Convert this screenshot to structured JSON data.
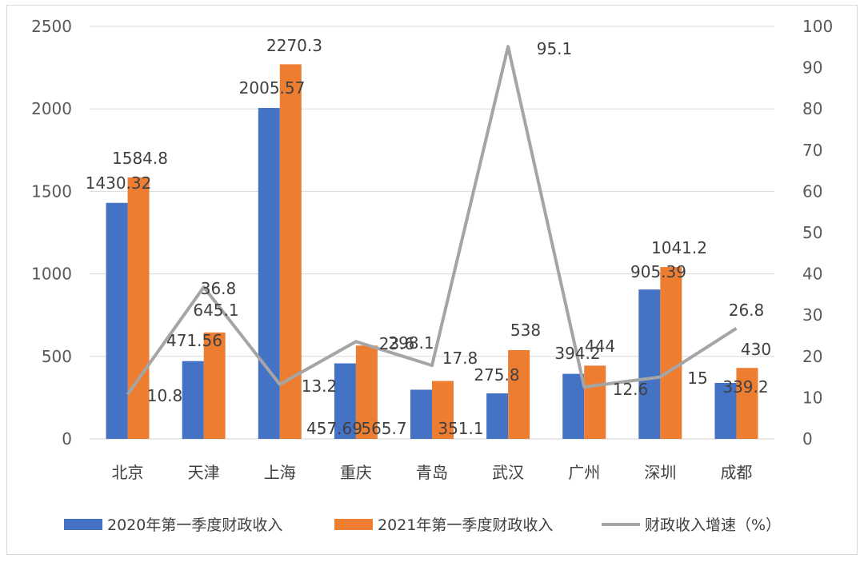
{
  "chart_data": {
    "type": "bar",
    "title": "",
    "categories": [
      "北京",
      "天津",
      "上海",
      "重庆",
      "青岛",
      "武汉",
      "广州",
      "深圳",
      "成都"
    ],
    "series": [
      {
        "name": "2020年第一季度财政收入",
        "type": "bar",
        "axis": "left",
        "color": "#4472c4",
        "values": [
          1430.32,
          471.56,
          2005.57,
          457.69,
          298.1,
          275.8,
          394.2,
          905.39,
          339.2
        ],
        "labels": [
          "1430.32",
          "471.56",
          "2005.57",
          "457.69",
          "298.1",
          "275.8",
          "394.2",
          "905.39",
          "339.2"
        ]
      },
      {
        "name": "2021年第一季度财政收入",
        "type": "bar",
        "axis": "left",
        "color": "#ed7d31",
        "values": [
          1584.8,
          645.1,
          2270.3,
          565.7,
          351.1,
          538,
          444,
          1041.2,
          430
        ],
        "labels": [
          "1584.8",
          "645.1",
          "2270.3",
          "565.7",
          "351.1",
          "538",
          "444",
          "1041.2",
          "430"
        ]
      },
      {
        "name": "财政收入增速（%）",
        "type": "line",
        "axis": "right",
        "color": "#a5a5a5",
        "values": [
          10.8,
          36.8,
          13.2,
          23.6,
          17.8,
          95.1,
          12.6,
          15,
          26.8
        ],
        "labels": [
          "10.8",
          "36.8",
          "13.2",
          "23.6",
          "17.8",
          "95.1",
          "12.6",
          "15",
          "26.8"
        ]
      }
    ],
    "y_left": {
      "min": 0,
      "max": 2500,
      "step": 500,
      "ticks": [
        "0",
        "500",
        "1000",
        "1500",
        "2000",
        "2500"
      ]
    },
    "y_right": {
      "min": 0,
      "max": 100,
      "step": 10,
      "ticks": [
        "0",
        "10",
        "20",
        "30",
        "40",
        "50",
        "60",
        "70",
        "80",
        "90",
        "100"
      ]
    },
    "xlabel": "",
    "ylabel": "",
    "grid": true,
    "legend_position": "bottom"
  }
}
